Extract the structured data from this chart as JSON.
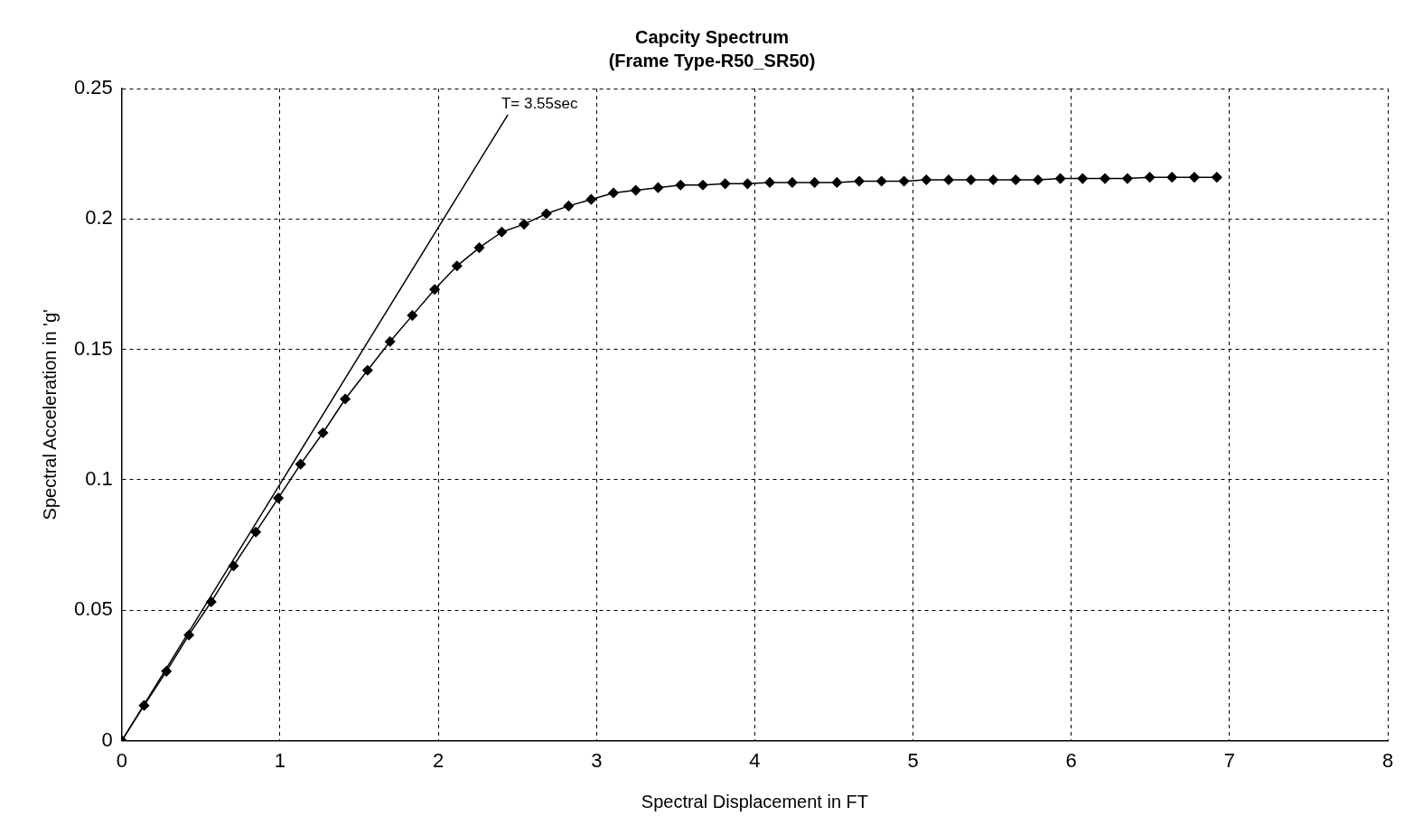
{
  "chart_data": {
    "type": "line",
    "title": "Capcity Spectrum",
    "subtitle": "(Frame Type-R50_SR50)",
    "xlabel": "Spectral Displacement in FT",
    "ylabel": "Spectral Acceleration in 'g'",
    "xlim": [
      0,
      8
    ],
    "xticks": [
      0,
      1,
      2,
      3,
      4,
      5,
      6,
      7,
      8
    ],
    "ylim": [
      0,
      0.25
    ],
    "yticks": [
      0,
      0.05,
      0.1,
      0.15,
      0.2,
      0.25
    ],
    "grid": true,
    "legend": false,
    "marker": "diamond",
    "line_style": "solid",
    "series": [
      {
        "color": "#000000",
        "x": [
          0,
          0.141,
          0.282,
          0.424,
          0.565,
          0.706,
          0.847,
          0.989,
          1.13,
          1.271,
          1.412,
          1.553,
          1.695,
          1.836,
          1.977,
          2.118,
          2.259,
          2.401,
          2.542,
          2.683,
          2.824,
          2.966,
          3.107,
          3.248,
          3.389,
          3.531,
          3.672,
          3.813,
          3.954,
          4.095,
          4.237,
          4.378,
          4.519,
          4.66,
          4.801,
          4.943,
          5.084,
          5.225,
          5.366,
          5.507,
          5.649,
          5.79,
          5.931,
          6.072,
          6.213,
          6.355,
          6.496,
          6.637,
          6.778,
          6.92
        ],
        "values": [
          0,
          0.0135,
          0.0266,
          0.0405,
          0.0532,
          0.067,
          0.08,
          0.093,
          0.106,
          0.118,
          0.131,
          0.142,
          0.153,
          0.163,
          0.173,
          0.182,
          0.189,
          0.195,
          0.198,
          0.202,
          0.205,
          0.2075,
          0.21,
          0.211,
          0.212,
          0.213,
          0.213,
          0.2135,
          0.2135,
          0.214,
          0.214,
          0.214,
          0.214,
          0.2145,
          0.2145,
          0.2145,
          0.215,
          0.215,
          0.215,
          0.215,
          0.215,
          0.215,
          0.2155,
          0.2155,
          0.2155,
          0.2155,
          0.216,
          0.216,
          0.216,
          0.216
        ]
      },
      {
        "color": "#000000",
        "marker": "none",
        "x": [
          0,
          2.44
        ],
        "values": [
          0,
          0.24
        ]
      }
    ],
    "annotations": [
      "T= 3.55sec"
    ]
  }
}
